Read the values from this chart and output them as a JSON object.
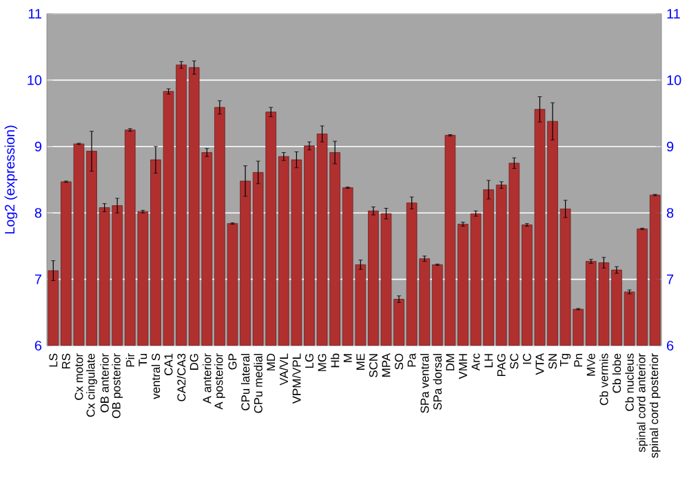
{
  "chart_data": {
    "type": "bar",
    "ylabel": "Log2 (expression)",
    "categories": [
      "LS",
      "RS",
      "Cx motor",
      "Cx cingulate",
      "OB anterior",
      "OB posterior",
      "Pir",
      "Tu",
      "ventral S",
      "CA1",
      "CA2/CA3",
      "DG",
      "A anterior",
      "A posterior",
      "GP",
      "CPu lateral",
      "CPu medial",
      "MD",
      "VA/VL",
      "VPM/VPL",
      "LG",
      "MG",
      "Hb",
      "M",
      "ME",
      "SCN",
      "MPA",
      "SO",
      "Pa",
      "SPa ventral",
      "SPa dorsal",
      "DM",
      "VMH",
      "Arc",
      "LH",
      "PAG",
      "SC",
      "IC",
      "VTA",
      "SN",
      "Tg",
      "Pn",
      "MVe",
      "Cb vermis",
      "Cb lobe",
      "Cb nucleus",
      "spinal cord anterior",
      "spinal cord posterior"
    ],
    "values": [
      7.13,
      8.47,
      9.04,
      8.93,
      8.08,
      8.11,
      9.25,
      8.02,
      8.8,
      9.83,
      10.23,
      10.19,
      8.91,
      9.59,
      7.84,
      8.48,
      8.61,
      9.52,
      8.85,
      8.8,
      9.01,
      9.19,
      8.91,
      8.38,
      7.22,
      8.03,
      7.99,
      6.7,
      8.15,
      7.31,
      7.22,
      9.17,
      7.83,
      7.99,
      8.35,
      8.42,
      8.75,
      7.82,
      9.56,
      9.38,
      8.06,
      6.55,
      7.27,
      7.25,
      7.14,
      6.81,
      7.76,
      8.27
    ],
    "errors": [
      0.15,
      0.01,
      0.01,
      0.3,
      0.06,
      0.11,
      0.02,
      0.02,
      0.2,
      0.04,
      0.05,
      0.1,
      0.06,
      0.1,
      0.01,
      0.23,
      0.17,
      0.07,
      0.06,
      0.12,
      0.06,
      0.12,
      0.17,
      0.01,
      0.07,
      0.06,
      0.08,
      0.05,
      0.09,
      0.04,
      0.01,
      0.01,
      0.03,
      0.04,
      0.14,
      0.05,
      0.08,
      0.02,
      0.19,
      0.28,
      0.13,
      0.01,
      0.03,
      0.08,
      0.05,
      0.03,
      0.01,
      0.01
    ],
    "color": "#b03030",
    "ylim": [
      6,
      11
    ],
    "yticks": [
      6,
      7,
      8,
      9,
      10,
      11
    ],
    "y2lim": [
      6,
      11
    ],
    "y2ticks": [
      6,
      7,
      8,
      9,
      10,
      11
    ],
    "grid": "y"
  }
}
